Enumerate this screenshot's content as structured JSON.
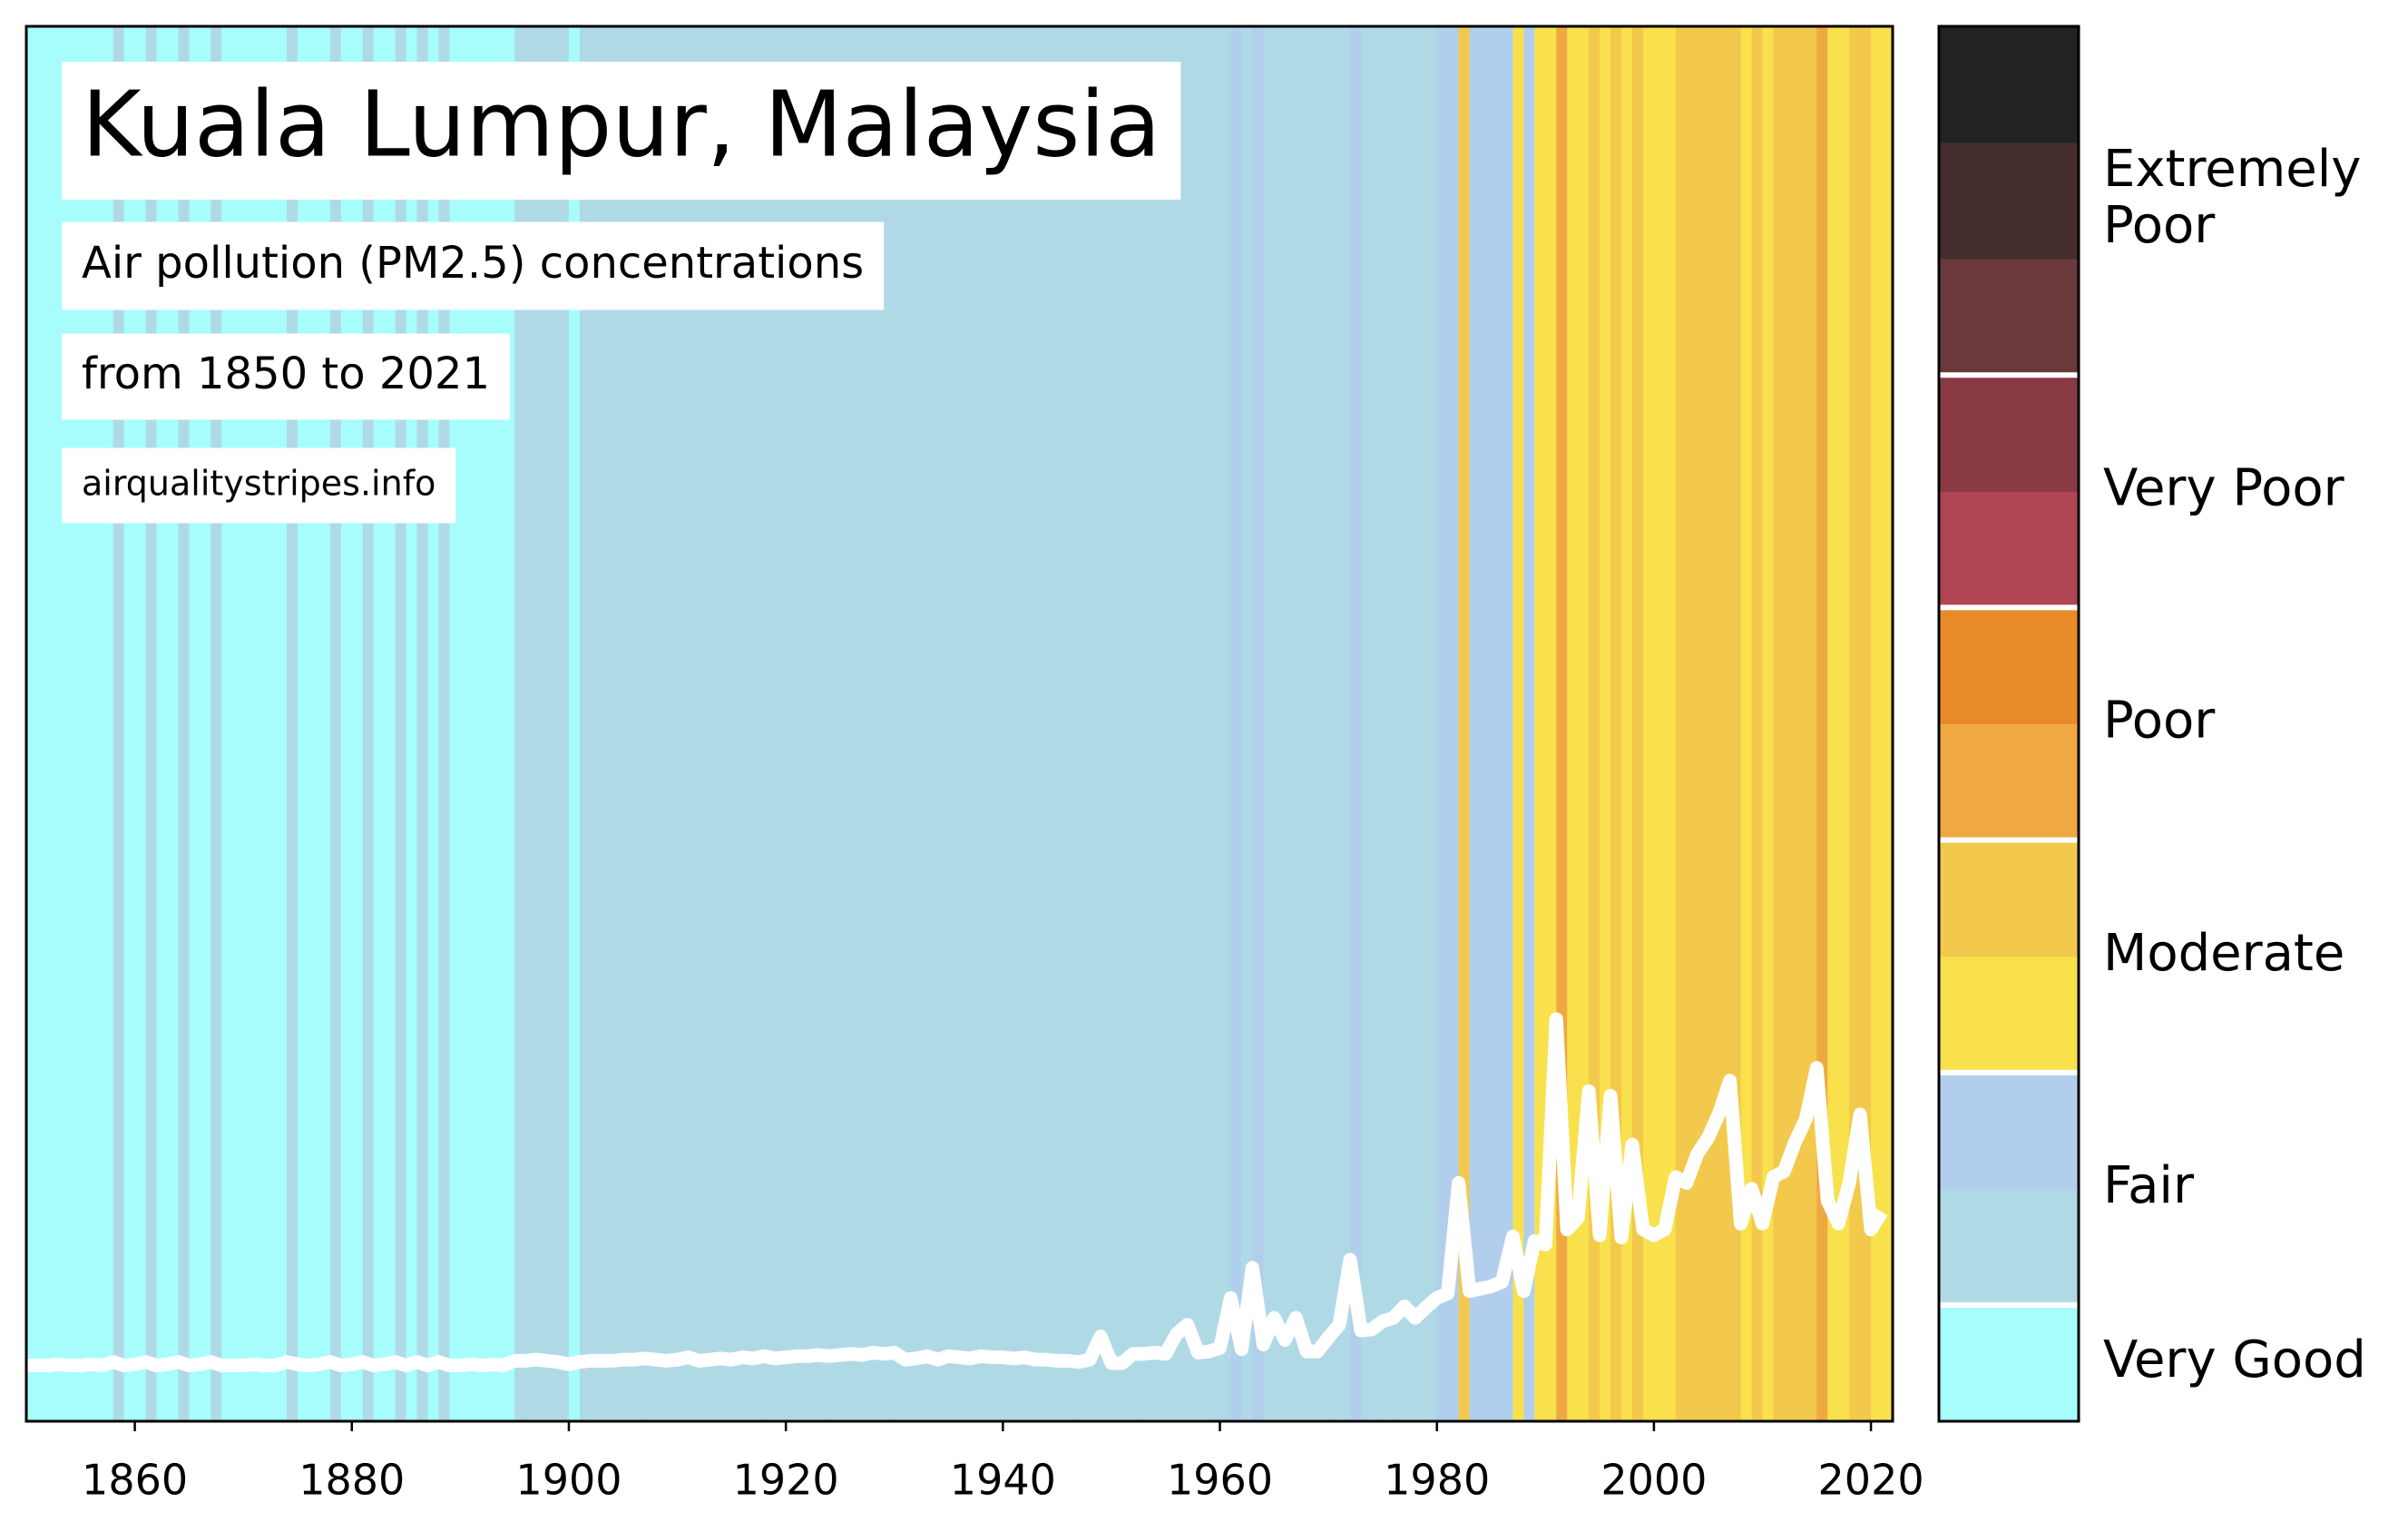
{
  "chart_data": {
    "type": "stripes",
    "title": "Kuala Lumpur, Malaysia",
    "subtitle": "Air pollution (PM2.5) concentrations",
    "period": "from 1850 to 2021",
    "source": "airqualitystripes.info",
    "x": [
      1850,
      1851,
      1852,
      1853,
      1854,
      1855,
      1856,
      1857,
      1858,
      1859,
      1860,
      1861,
      1862,
      1863,
      1864,
      1865,
      1866,
      1867,
      1868,
      1869,
      1870,
      1871,
      1872,
      1873,
      1874,
      1875,
      1876,
      1877,
      1878,
      1879,
      1880,
      1881,
      1882,
      1883,
      1884,
      1885,
      1886,
      1887,
      1888,
      1889,
      1890,
      1891,
      1892,
      1893,
      1894,
      1895,
      1896,
      1897,
      1898,
      1899,
      1900,
      1901,
      1902,
      1903,
      1904,
      1905,
      1906,
      1907,
      1908,
      1909,
      1910,
      1911,
      1912,
      1913,
      1914,
      1915,
      1916,
      1917,
      1918,
      1919,
      1920,
      1921,
      1922,
      1923,
      1924,
      1925,
      1926,
      1927,
      1928,
      1929,
      1930,
      1931,
      1932,
      1933,
      1934,
      1935,
      1936,
      1937,
      1938,
      1939,
      1940,
      1941,
      1942,
      1943,
      1944,
      1945,
      1946,
      1947,
      1948,
      1949,
      1950,
      1951,
      1952,
      1953,
      1954,
      1955,
      1956,
      1957,
      1958,
      1959,
      1960,
      1961,
      1962,
      1963,
      1964,
      1965,
      1966,
      1967,
      1968,
      1969,
      1970,
      1971,
      1972,
      1973,
      1974,
      1975,
      1976,
      1977,
      1978,
      1979,
      1980,
      1981,
      1982,
      1983,
      1984,
      1985,
      1986,
      1987,
      1988,
      1989,
      1990,
      1991,
      1992,
      1993,
      1994,
      1995,
      1996,
      1997,
      1998,
      1999,
      2000,
      2001,
      2002,
      2003,
      2004,
      2005,
      2006,
      2007,
      2008,
      2009,
      2010,
      2011,
      2012,
      2013,
      2014,
      2015,
      2016,
      2017,
      2018,
      2019,
      2020,
      2021
    ],
    "values": [
      4.8,
      4.8,
      4.8,
      4.9,
      4.8,
      4.8,
      4.9,
      4.8,
      5.1,
      4.8,
      4.9,
      5.1,
      4.8,
      4.9,
      5.1,
      4.8,
      4.9,
      5.1,
      4.8,
      4.8,
      4.8,
      4.9,
      4.8,
      4.8,
      5.1,
      4.9,
      4.8,
      4.9,
      5.1,
      4.8,
      4.9,
      5.1,
      4.8,
      4.9,
      5.1,
      4.8,
      5.1,
      4.8,
      5.1,
      4.8,
      4.8,
      4.9,
      4.8,
      4.9,
      4.8,
      5.2,
      5.2,
      5.3,
      5.2,
      5.1,
      4.9,
      5.1,
      5.2,
      5.2,
      5.2,
      5.3,
      5.3,
      5.4,
      5.3,
      5.2,
      5.3,
      5.5,
      5.2,
      5.3,
      5.4,
      5.3,
      5.5,
      5.4,
      5.6,
      5.4,
      5.5,
      5.6,
      5.6,
      5.7,
      5.6,
      5.7,
      5.8,
      5.7,
      5.9,
      5.8,
      5.9,
      5.3,
      5.4,
      5.6,
      5.3,
      5.6,
      5.5,
      5.4,
      5.6,
      5.5,
      5.5,
      5.4,
      5.5,
      5.3,
      5.3,
      5.2,
      5.2,
      5.1,
      5.3,
      7.3,
      5.0,
      5.0,
      5.8,
      5.8,
      5.9,
      5.8,
      7.5,
      8.3,
      5.9,
      6.0,
      6.3,
      10.6,
      6.2,
      13.2,
      6.6,
      8.9,
      7.0,
      8.9,
      6.0,
      6.0,
      7.2,
      8.3,
      13.9,
      7.8,
      7.9,
      8.6,
      8.9,
      9.9,
      8.9,
      9.8,
      10.6,
      11.0,
      20.5,
      11.2,
      11.4,
      11.6,
      12.0,
      15.9,
      11.2,
      15.5,
      15.2,
      34.6,
      16.5,
      17.5,
      28.4,
      16.0,
      28.0,
      15.8,
      23.8,
      16.5,
      16.0,
      16.5,
      21.0,
      20.5,
      23.0,
      24.4,
      26.5,
      29.3,
      17.0,
      20.0,
      17.0,
      21.0,
      21.5,
      24.0,
      26.0,
      30.4,
      19.0,
      17.0,
      20.5,
      26.4,
      16.5,
      18.0
    ],
    "line_color": "#ffffff",
    "xlim": [
      1850,
      2022
    ],
    "ylim": [
      0,
      120
    ],
    "xticks": [
      1860,
      1880,
      1900,
      1920,
      1940,
      1960,
      1980,
      2000,
      2020
    ],
    "colorbar": {
      "levels": [
        0,
        5,
        10,
        15,
        20,
        30,
        40,
        50,
        60,
        70,
        80,
        100,
        120
      ],
      "colors": [
        "#a6fdfc",
        "#b0d9e6",
        "#b1cfec",
        "#f8e14c",
        "#f2c94c",
        "#f0a843",
        "#e88a27",
        "#b04553",
        "#893a45",
        "#6b393b",
        "#452d2d",
        "#222222"
      ],
      "separator_color": "#ffffff",
      "classes": [
        {
          "label": "Very Good",
          "from": 0,
          "to": 5
        },
        {
          "label": "Fair",
          "from": 5,
          "to": 15
        },
        {
          "label": "Moderate",
          "from": 15,
          "to": 30
        },
        {
          "label": "Poor",
          "from": 30,
          "to": 50
        },
        {
          "label": "Very Poor",
          "from": 50,
          "to": 70
        },
        {
          "label": "Extremely Poor",
          "from": 70,
          "to": 120
        }
      ]
    }
  }
}
